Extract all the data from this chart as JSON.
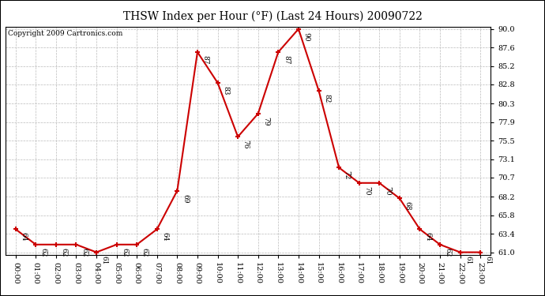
{
  "title": "THSW Index per Hour (°F) (Last 24 Hours) 20090722",
  "copyright": "Copyright 2009 Cartronics.com",
  "hours": [
    "00:00",
    "01:00",
    "02:00",
    "03:00",
    "04:00",
    "05:00",
    "06:00",
    "07:00",
    "08:00",
    "09:00",
    "10:00",
    "11:00",
    "12:00",
    "13:00",
    "14:00",
    "15:00",
    "16:00",
    "17:00",
    "18:00",
    "19:00",
    "20:00",
    "21:00",
    "22:00",
    "23:00"
  ],
  "values": [
    64,
    62,
    62,
    62,
    61,
    62,
    62,
    64,
    69,
    87,
    83,
    76,
    79,
    87,
    90,
    82,
    72,
    70,
    70,
    68,
    64,
    62,
    61,
    61
  ],
  "ylim_min": 61.0,
  "ylim_max": 90.0,
  "yticks": [
    61.0,
    63.4,
    65.8,
    68.2,
    70.7,
    73.1,
    75.5,
    77.9,
    80.3,
    82.8,
    85.2,
    87.6,
    90.0
  ],
  "line_color": "#cc0000",
  "marker_color": "#cc0000",
  "bg_color": "#ffffff",
  "grid_color": "#bbbbbb",
  "title_fontsize": 10,
  "label_fontsize": 7,
  "copyright_fontsize": 6.5
}
